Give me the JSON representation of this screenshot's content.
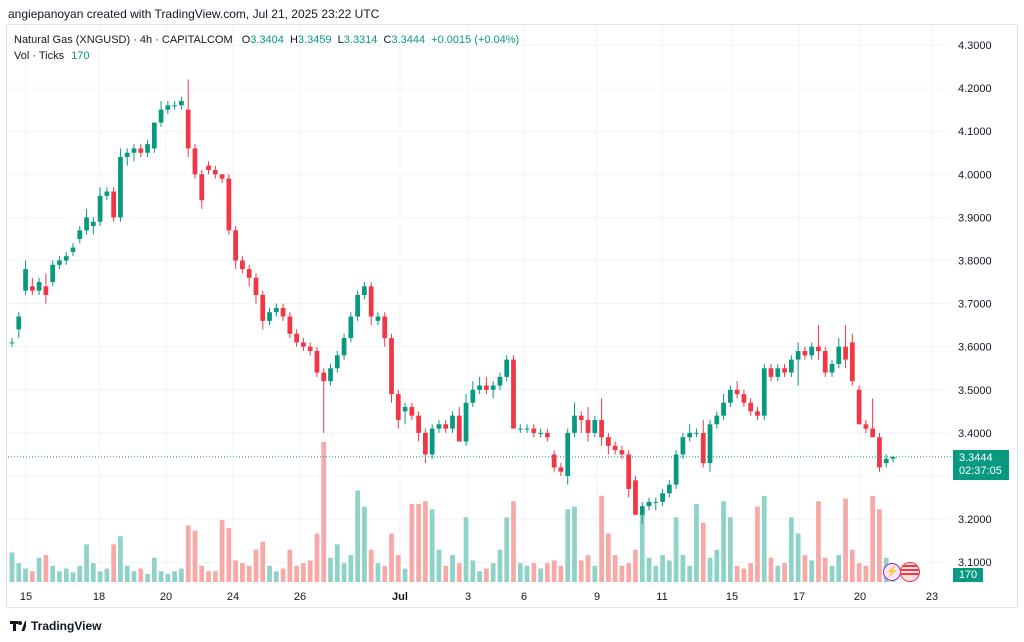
{
  "credit": "angiepanoyan created with TradingView.com, Jul 21, 2025 23:22 UTC",
  "legend": {
    "symbol": "Natural Gas (XNGUSD) · 4h · CAPITALCOM",
    "o_label": "O",
    "o": "3.3404",
    "h_label": "H",
    "h": "3.3459",
    "l_label": "L",
    "l": "3.3314",
    "c_label": "C",
    "c": "3.3444",
    "change": "+0.0015 (+0.04%)",
    "vol_label": "Vol · Ticks",
    "vol_value": "170"
  },
  "price_tag": {
    "price": "3.3444",
    "countdown": "02:37:05"
  },
  "volume_tag": "170",
  "brand": "TradingView",
  "icons": {
    "event": "bolt-icon",
    "flag": "us-flag-icon"
  },
  "colors": {
    "up": "#089981",
    "down": "#f23645",
    "up_vol": "#8fd3c8",
    "down_vol": "#f7a9a7"
  },
  "chart_data": {
    "type": "candlestick",
    "interval": "4h",
    "y_ticks": [
      "4.3000",
      "4.2000",
      "4.1000",
      "4.0000",
      "3.9000",
      "3.8000",
      "3.7000",
      "3.6000",
      "3.5000",
      "3.4000",
      "3.3000",
      "3.2000",
      "3.1000"
    ],
    "ylim": [
      3.05,
      4.35
    ],
    "x_ticks": [
      "15",
      "18",
      "20",
      "24",
      "26",
      "Jul",
      "3",
      "6",
      "9",
      "11",
      "15",
      "17",
      "20",
      "23"
    ],
    "candles": [
      {
        "o": 3.61,
        "h": 3.62,
        "l": 3.6,
        "c": 3.61,
        "v": 0.55
      },
      {
        "o": 3.64,
        "h": 3.68,
        "l": 3.62,
        "c": 3.67,
        "v": 0.35
      },
      {
        "o": 3.73,
        "h": 3.8,
        "l": 3.72,
        "c": 3.78,
        "v": 0.25
      },
      {
        "o": 3.74,
        "h": 3.76,
        "l": 3.72,
        "c": 3.73,
        "v": 0.2
      },
      {
        "o": 3.73,
        "h": 3.76,
        "l": 3.72,
        "c": 3.75,
        "v": 0.45
      },
      {
        "o": 3.74,
        "h": 3.77,
        "l": 3.7,
        "c": 3.72,
        "v": 0.5
      },
      {
        "o": 3.75,
        "h": 3.8,
        "l": 3.74,
        "c": 3.79,
        "v": 0.3
      },
      {
        "o": 3.79,
        "h": 3.81,
        "l": 3.78,
        "c": 3.8,
        "v": 0.2
      },
      {
        "o": 3.8,
        "h": 3.82,
        "l": 3.79,
        "c": 3.81,
        "v": 0.25
      },
      {
        "o": 3.82,
        "h": 3.84,
        "l": 3.81,
        "c": 3.83,
        "v": 0.18
      },
      {
        "o": 3.85,
        "h": 3.88,
        "l": 3.84,
        "c": 3.87,
        "v": 0.3
      },
      {
        "o": 3.87,
        "h": 3.92,
        "l": 3.86,
        "c": 3.9,
        "v": 0.7
      },
      {
        "o": 3.88,
        "h": 3.9,
        "l": 3.86,
        "c": 3.89,
        "v": 0.35
      },
      {
        "o": 3.89,
        "h": 3.97,
        "l": 3.88,
        "c": 3.95,
        "v": 0.2
      },
      {
        "o": 3.95,
        "h": 3.97,
        "l": 3.94,
        "c": 3.96,
        "v": 0.25
      },
      {
        "o": 3.96,
        "h": 3.97,
        "l": 3.89,
        "c": 3.9,
        "v": 0.7
      },
      {
        "o": 3.9,
        "h": 4.06,
        "l": 3.89,
        "c": 4.04,
        "v": 0.85
      },
      {
        "o": 4.04,
        "h": 4.06,
        "l": 4.02,
        "c": 4.05,
        "v": 0.3
      },
      {
        "o": 4.05,
        "h": 4.07,
        "l": 4.03,
        "c": 4.06,
        "v": 0.2
      },
      {
        "o": 4.06,
        "h": 4.07,
        "l": 4.04,
        "c": 4.05,
        "v": 0.25
      },
      {
        "o": 4.05,
        "h": 4.08,
        "l": 4.04,
        "c": 4.07,
        "v": 0.15
      },
      {
        "o": 4.06,
        "h": 4.12,
        "l": 4.05,
        "c": 4.12,
        "v": 0.45
      },
      {
        "o": 4.12,
        "h": 4.17,
        "l": 4.11,
        "c": 4.15,
        "v": 0.2
      },
      {
        "o": 4.15,
        "h": 4.17,
        "l": 4.14,
        "c": 4.16,
        "v": 0.15
      },
      {
        "o": 4.16,
        "h": 4.17,
        "l": 4.15,
        "c": 4.16,
        "v": 0.2
      },
      {
        "o": 4.16,
        "h": 4.18,
        "l": 4.15,
        "c": 4.17,
        "v": 0.25
      },
      {
        "o": 4.15,
        "h": 4.22,
        "l": 4.04,
        "c": 4.06,
        "v": 1.05
      },
      {
        "o": 4.06,
        "h": 4.07,
        "l": 3.99,
        "c": 4.0,
        "v": 0.95
      },
      {
        "o": 4.0,
        "h": 4.01,
        "l": 3.92,
        "c": 3.94,
        "v": 0.3
      },
      {
        "o": 4.02,
        "h": 4.03,
        "l": 4.0,
        "c": 4.01,
        "v": 0.2
      },
      {
        "o": 4.01,
        "h": 4.02,
        "l": 3.99,
        "c": 4.0,
        "v": 0.2
      },
      {
        "o": 4.0,
        "h": 4.0,
        "l": 3.98,
        "c": 3.99,
        "v": 1.15
      },
      {
        "o": 3.99,
        "h": 4.0,
        "l": 3.86,
        "c": 3.87,
        "v": 1.0
      },
      {
        "o": 3.87,
        "h": 3.88,
        "l": 3.78,
        "c": 3.8,
        "v": 0.4
      },
      {
        "o": 3.8,
        "h": 3.81,
        "l": 3.77,
        "c": 3.78,
        "v": 0.35
      },
      {
        "o": 3.78,
        "h": 3.79,
        "l": 3.74,
        "c": 3.76,
        "v": 0.3
      },
      {
        "o": 3.76,
        "h": 3.77,
        "l": 3.7,
        "c": 3.72,
        "v": 0.6
      },
      {
        "o": 3.72,
        "h": 3.73,
        "l": 3.64,
        "c": 3.66,
        "v": 0.75
      },
      {
        "o": 3.66,
        "h": 3.69,
        "l": 3.65,
        "c": 3.68,
        "v": 0.3
      },
      {
        "o": 3.68,
        "h": 3.7,
        "l": 3.67,
        "c": 3.69,
        "v": 0.2
      },
      {
        "o": 3.69,
        "h": 3.7,
        "l": 3.66,
        "c": 3.67,
        "v": 0.25
      },
      {
        "o": 3.67,
        "h": 3.68,
        "l": 3.62,
        "c": 3.63,
        "v": 0.6
      },
      {
        "o": 3.63,
        "h": 3.64,
        "l": 3.6,
        "c": 3.61,
        "v": 0.3
      },
      {
        "o": 3.61,
        "h": 3.62,
        "l": 3.59,
        "c": 3.6,
        "v": 0.35
      },
      {
        "o": 3.6,
        "h": 3.61,
        "l": 3.58,
        "c": 3.59,
        "v": 0.4
      },
      {
        "o": 3.59,
        "h": 3.6,
        "l": 3.53,
        "c": 3.54,
        "v": 0.9
      },
      {
        "o": 3.54,
        "h": 3.55,
        "l": 3.4,
        "c": 3.52,
        "v": 2.6
      },
      {
        "o": 3.52,
        "h": 3.56,
        "l": 3.51,
        "c": 3.55,
        "v": 0.45
      },
      {
        "o": 3.55,
        "h": 3.59,
        "l": 3.54,
        "c": 3.58,
        "v": 0.7
      },
      {
        "o": 3.58,
        "h": 3.63,
        "l": 3.57,
        "c": 3.62,
        "v": 0.35
      },
      {
        "o": 3.62,
        "h": 3.68,
        "l": 3.61,
        "c": 3.67,
        "v": 0.5
      },
      {
        "o": 3.67,
        "h": 3.73,
        "l": 3.66,
        "c": 3.72,
        "v": 1.7
      },
      {
        "o": 3.72,
        "h": 3.75,
        "l": 3.71,
        "c": 3.74,
        "v": 1.4
      },
      {
        "o": 3.74,
        "h": 3.75,
        "l": 3.65,
        "c": 3.67,
        "v": 0.6
      },
      {
        "o": 3.66,
        "h": 3.68,
        "l": 3.65,
        "c": 3.67,
        "v": 0.35
      },
      {
        "o": 3.67,
        "h": 3.68,
        "l": 3.6,
        "c": 3.62,
        "v": 0.3
      },
      {
        "o": 3.62,
        "h": 3.63,
        "l": 3.47,
        "c": 3.49,
        "v": 0.9
      },
      {
        "o": 3.49,
        "h": 3.5,
        "l": 3.41,
        "c": 3.43,
        "v": 0.5
      },
      {
        "o": 3.45,
        "h": 3.47,
        "l": 3.42,
        "c": 3.46,
        "v": 0.25
      },
      {
        "o": 3.46,
        "h": 3.47,
        "l": 3.43,
        "c": 3.44,
        "v": 1.45
      },
      {
        "o": 3.44,
        "h": 3.45,
        "l": 3.38,
        "c": 3.4,
        "v": 1.45
      },
      {
        "o": 3.4,
        "h": 3.41,
        "l": 3.33,
        "c": 3.35,
        "v": 1.5
      },
      {
        "o": 3.35,
        "h": 3.42,
        "l": 3.34,
        "c": 3.41,
        "v": 1.35
      },
      {
        "o": 3.41,
        "h": 3.43,
        "l": 3.4,
        "c": 3.42,
        "v": 0.6
      },
      {
        "o": 3.42,
        "h": 3.43,
        "l": 3.4,
        "c": 3.41,
        "v": 0.3
      },
      {
        "o": 3.41,
        "h": 3.45,
        "l": 3.4,
        "c": 3.44,
        "v": 0.5
      },
      {
        "o": 3.44,
        "h": 3.46,
        "l": 3.39,
        "c": 3.38,
        "v": 0.35
      },
      {
        "o": 3.38,
        "h": 3.49,
        "l": 3.37,
        "c": 3.47,
        "v": 1.2
      },
      {
        "o": 3.47,
        "h": 3.52,
        "l": 3.46,
        "c": 3.5,
        "v": 0.4
      },
      {
        "o": 3.5,
        "h": 3.53,
        "l": 3.49,
        "c": 3.51,
        "v": 0.2
      },
      {
        "o": 3.51,
        "h": 3.53,
        "l": 3.49,
        "c": 3.5,
        "v": 0.25
      },
      {
        "o": 3.5,
        "h": 3.52,
        "l": 3.48,
        "c": 3.51,
        "v": 0.35
      },
      {
        "o": 3.51,
        "h": 3.54,
        "l": 3.5,
        "c": 3.53,
        "v": 0.6
      },
      {
        "o": 3.53,
        "h": 3.58,
        "l": 3.52,
        "c": 3.57,
        "v": 1.2
      },
      {
        "o": 3.57,
        "h": 3.58,
        "l": 3.42,
        "c": 3.41,
        "v": 1.5
      },
      {
        "o": 3.41,
        "h": 3.42,
        "l": 3.4,
        "c": 3.41,
        "v": 0.35
      },
      {
        "o": 3.41,
        "h": 3.42,
        "l": 3.4,
        "c": 3.41,
        "v": 0.3
      },
      {
        "o": 3.41,
        "h": 3.42,
        "l": 3.39,
        "c": 3.4,
        "v": 0.35
      },
      {
        "o": 3.4,
        "h": 3.41,
        "l": 3.39,
        "c": 3.4,
        "v": 0.25
      },
      {
        "o": 3.4,
        "h": 3.41,
        "l": 3.38,
        "c": 3.39,
        "v": 0.35
      },
      {
        "o": 3.35,
        "h": 3.36,
        "l": 3.31,
        "c": 3.32,
        "v": 0.4
      },
      {
        "o": 3.32,
        "h": 3.33,
        "l": 3.3,
        "c": 3.31,
        "v": 0.3
      },
      {
        "o": 3.3,
        "h": 3.41,
        "l": 3.28,
        "c": 3.4,
        "v": 1.35
      },
      {
        "o": 3.4,
        "h": 3.47,
        "l": 3.39,
        "c": 3.44,
        "v": 1.4
      },
      {
        "o": 3.44,
        "h": 3.45,
        "l": 3.4,
        "c": 3.43,
        "v": 0.4
      },
      {
        "o": 3.43,
        "h": 3.46,
        "l": 3.38,
        "c": 3.4,
        "v": 0.5
      },
      {
        "o": 3.4,
        "h": 3.44,
        "l": 3.39,
        "c": 3.43,
        "v": 0.3
      },
      {
        "o": 3.43,
        "h": 3.48,
        "l": 3.37,
        "c": 3.39,
        "v": 1.6
      },
      {
        "o": 3.39,
        "h": 3.4,
        "l": 3.35,
        "c": 3.37,
        "v": 0.9
      },
      {
        "o": 3.37,
        "h": 3.38,
        "l": 3.35,
        "c": 3.36,
        "v": 0.5
      },
      {
        "o": 3.36,
        "h": 3.37,
        "l": 3.34,
        "c": 3.35,
        "v": 0.3
      },
      {
        "o": 3.35,
        "h": 3.36,
        "l": 3.25,
        "c": 3.27,
        "v": 0.35
      },
      {
        "o": 3.29,
        "h": 3.3,
        "l": 3.22,
        "c": 3.21,
        "v": 0.6
      },
      {
        "o": 3.21,
        "h": 3.24,
        "l": 3.19,
        "c": 3.23,
        "v": 1.3
      },
      {
        "o": 3.23,
        "h": 3.25,
        "l": 3.22,
        "c": 3.24,
        "v": 0.45
      },
      {
        "o": 3.24,
        "h": 3.25,
        "l": 3.22,
        "c": 3.24,
        "v": 0.3
      },
      {
        "o": 3.24,
        "h": 3.27,
        "l": 3.23,
        "c": 3.26,
        "v": 0.5
      },
      {
        "o": 3.26,
        "h": 3.29,
        "l": 3.25,
        "c": 3.28,
        "v": 0.4
      },
      {
        "o": 3.28,
        "h": 3.36,
        "l": 3.27,
        "c": 3.35,
        "v": 1.2
      },
      {
        "o": 3.35,
        "h": 3.4,
        "l": 3.34,
        "c": 3.39,
        "v": 0.5
      },
      {
        "o": 3.39,
        "h": 3.42,
        "l": 3.38,
        "c": 3.4,
        "v": 0.3
      },
      {
        "o": 3.4,
        "h": 3.41,
        "l": 3.39,
        "c": 3.4,
        "v": 1.45
      },
      {
        "o": 3.4,
        "h": 3.43,
        "l": 3.32,
        "c": 3.33,
        "v": 1.1
      },
      {
        "o": 3.33,
        "h": 3.43,
        "l": 3.31,
        "c": 3.42,
        "v": 0.45
      },
      {
        "o": 3.42,
        "h": 3.45,
        "l": 3.41,
        "c": 3.44,
        "v": 0.6
      },
      {
        "o": 3.44,
        "h": 3.49,
        "l": 3.43,
        "c": 3.47,
        "v": 1.5
      },
      {
        "o": 3.47,
        "h": 3.51,
        "l": 3.46,
        "c": 3.5,
        "v": 1.2
      },
      {
        "o": 3.5,
        "h": 3.52,
        "l": 3.48,
        "c": 3.49,
        "v": 0.3
      },
      {
        "o": 3.49,
        "h": 3.5,
        "l": 3.46,
        "c": 3.47,
        "v": 0.25
      },
      {
        "o": 3.47,
        "h": 3.48,
        "l": 3.44,
        "c": 3.45,
        "v": 0.35
      },
      {
        "o": 3.45,
        "h": 3.46,
        "l": 3.43,
        "c": 3.44,
        "v": 1.4
      },
      {
        "o": 3.44,
        "h": 3.56,
        "l": 3.43,
        "c": 3.55,
        "v": 1.6
      },
      {
        "o": 3.55,
        "h": 3.56,
        "l": 3.52,
        "c": 3.53,
        "v": 0.45
      },
      {
        "o": 3.53,
        "h": 3.56,
        "l": 3.52,
        "c": 3.55,
        "v": 0.3
      },
      {
        "o": 3.55,
        "h": 3.56,
        "l": 3.53,
        "c": 3.54,
        "v": 0.35
      },
      {
        "o": 3.54,
        "h": 3.58,
        "l": 3.53,
        "c": 3.57,
        "v": 1.2
      },
      {
        "o": 3.57,
        "h": 3.61,
        "l": 3.51,
        "c": 3.59,
        "v": 0.9
      },
      {
        "o": 3.59,
        "h": 3.6,
        "l": 3.57,
        "c": 3.58,
        "v": 0.5
      },
      {
        "o": 3.58,
        "h": 3.61,
        "l": 3.57,
        "c": 3.6,
        "v": 0.4
      },
      {
        "o": 3.6,
        "h": 3.65,
        "l": 3.57,
        "c": 3.59,
        "v": 1.5
      },
      {
        "o": 3.59,
        "h": 3.6,
        "l": 3.53,
        "c": 3.54,
        "v": 0.45
      },
      {
        "o": 3.54,
        "h": 3.57,
        "l": 3.53,
        "c": 3.56,
        "v": 0.3
      },
      {
        "o": 3.56,
        "h": 3.62,
        "l": 3.55,
        "c": 3.6,
        "v": 0.5
      },
      {
        "o": 3.6,
        "h": 3.65,
        "l": 3.55,
        "c": 3.57,
        "v": 1.55
      },
      {
        "o": 3.61,
        "h": 3.63,
        "l": 3.51,
        "c": 3.52,
        "v": 0.6
      },
      {
        "o": 3.5,
        "h": 3.51,
        "l": 3.42,
        "c": 3.42,
        "v": 0.35
      },
      {
        "o": 3.42,
        "h": 3.43,
        "l": 3.4,
        "c": 3.41,
        "v": 0.3
      },
      {
        "o": 3.41,
        "h": 3.48,
        "l": 3.39,
        "c": 3.39,
        "v": 1.6
      },
      {
        "o": 3.39,
        "h": 3.4,
        "l": 3.31,
        "c": 3.32,
        "v": 1.35
      },
      {
        "o": 3.33,
        "h": 3.35,
        "l": 3.32,
        "c": 3.34,
        "v": 0.45
      },
      {
        "o": 3.3404,
        "h": 3.3459,
        "l": 3.3314,
        "c": 3.3444,
        "v": 0.3
      }
    ]
  }
}
